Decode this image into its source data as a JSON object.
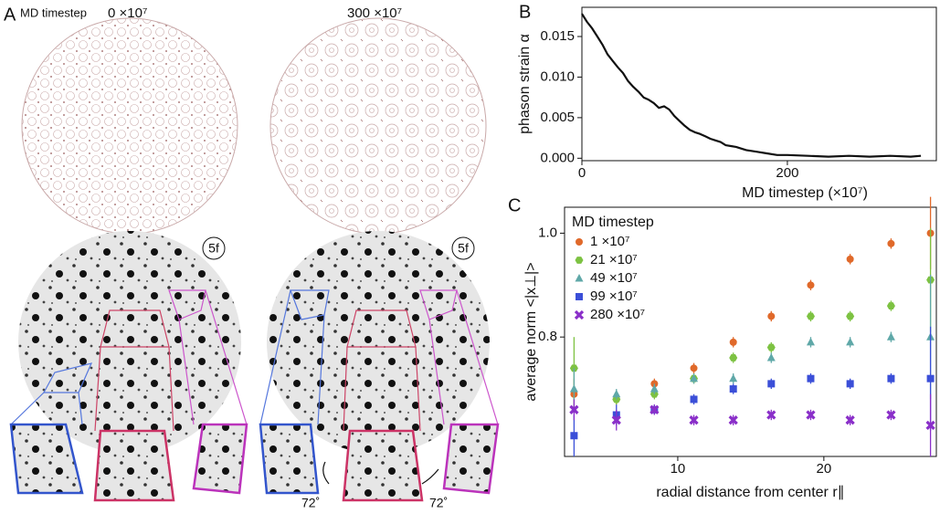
{
  "panel_a": {
    "label": "A",
    "timestep_label": "MD timestep",
    "left_time": "0 ×10⁷",
    "right_time": "300 ×10⁷",
    "left_symmetry": "5f",
    "right_symmetry": "5f",
    "left_angle": "72˚",
    "right_angle": "72˚"
  },
  "chart_data": [
    {
      "type": "line",
      "panel_label": "B",
      "x_label": "MD timestep (×10⁷)",
      "y_label": "phason strain α",
      "color": "#111111",
      "x": [
        0,
        5,
        10,
        15,
        20,
        25,
        30,
        35,
        40,
        45,
        50,
        55,
        60,
        65,
        70,
        75,
        80,
        85,
        90,
        95,
        100,
        105,
        110,
        115,
        120,
        125,
        130,
        135,
        140,
        145,
        150,
        160,
        170,
        180,
        190,
        200,
        220,
        240,
        260,
        280,
        300,
        320,
        330
      ],
      "values": [
        0.0178,
        0.0168,
        0.016,
        0.015,
        0.014,
        0.0128,
        0.012,
        0.0112,
        0.0105,
        0.0095,
        0.0088,
        0.0082,
        0.0075,
        0.0072,
        0.0068,
        0.0062,
        0.0064,
        0.006,
        0.0052,
        0.0046,
        0.004,
        0.0035,
        0.0032,
        0.003,
        0.0027,
        0.0024,
        0.0022,
        0.002,
        0.0016,
        0.0015,
        0.0014,
        0.001,
        0.0008,
        0.0006,
        0.0004,
        0.0004,
        0.0003,
        0.0002,
        0.0003,
        0.0002,
        0.0003,
        0.0002,
        0.0003
      ],
      "xlim": [
        0,
        345
      ],
      "xticks": [
        0,
        200
      ],
      "ylim": [
        -0.0003,
        0.0186
      ],
      "yticks": [
        {
          "value": 0,
          "label": "0.000"
        },
        {
          "value": 0.005,
          "label": "0.005"
        },
        {
          "value": 0.01,
          "label": "0.010"
        },
        {
          "value": 0.015,
          "label": "0.015"
        }
      ]
    },
    {
      "type": "scatter",
      "panel_label": "C",
      "x_label": "radial distance from center r∥",
      "y_label": "average norm <|x⊥|>",
      "legend_title": "MD timestep",
      "x": [
        2.9,
        5.8,
        8.4,
        11.1,
        13.8,
        16.4,
        19.1,
        21.8,
        24.6,
        27.3
      ],
      "series": [
        {
          "name": "1 ×10⁷",
          "color": "#e0692a",
          "marker": "circle",
          "values": [
            0.69,
            0.68,
            0.71,
            0.74,
            0.79,
            0.84,
            0.9,
            0.95,
            0.98,
            1.0
          ],
          "errors": [
            0.03,
            0.01,
            0.01,
            0.01,
            0.01,
            0.01,
            0.01,
            0.01,
            0.01,
            0.07
          ]
        },
        {
          "name": "21 ×10⁷",
          "color": "#7dc242",
          "marker": "hexagon",
          "values": [
            0.74,
            0.68,
            0.69,
            0.72,
            0.76,
            0.78,
            0.84,
            0.84,
            0.86,
            0.91
          ],
          "errors": [
            0.06,
            0.01,
            0.01,
            0.01,
            0.01,
            0.01,
            0.01,
            0.01,
            0.01,
            0.1
          ]
        },
        {
          "name": "49 ×10⁷",
          "color": "#5fa8a8",
          "marker": "triangle",
          "values": [
            0.7,
            0.69,
            0.7,
            0.72,
            0.72,
            0.76,
            0.79,
            0.79,
            0.8,
            0.8
          ],
          "errors": [
            0.04,
            0.01,
            0.01,
            0.01,
            0.01,
            0.01,
            0.01,
            0.01,
            0.01,
            0.12
          ]
        },
        {
          "name": "99 ×10⁷",
          "color": "#3b4fd8",
          "marker": "square",
          "values": [
            0.61,
            0.65,
            0.66,
            0.68,
            0.7,
            0.71,
            0.72,
            0.71,
            0.72,
            0.72
          ],
          "errors": [
            0.04,
            0.02,
            0.01,
            0.01,
            0.01,
            0.01,
            0.01,
            0.01,
            0.01,
            0.1
          ]
        },
        {
          "name": "280 ×10⁷",
          "color": "#8a2fc9",
          "marker": "x",
          "values": [
            0.66,
            0.64,
            0.66,
            0.64,
            0.64,
            0.65,
            0.65,
            0.64,
            0.65,
            0.63
          ],
          "errors": [
            0.02,
            0.02,
            0.01,
            0.01,
            0.01,
            0.01,
            0.01,
            0.01,
            0.01,
            0.06
          ]
        }
      ],
      "xlim": [
        2.25,
        27.7
      ],
      "xticks": [
        10,
        20
      ],
      "ylim": [
        0.57,
        1.05
      ],
      "yticks": [
        {
          "value": 0.8,
          "label": "0.8"
        },
        {
          "value": 1.0,
          "label": "1.0"
        }
      ]
    }
  ]
}
